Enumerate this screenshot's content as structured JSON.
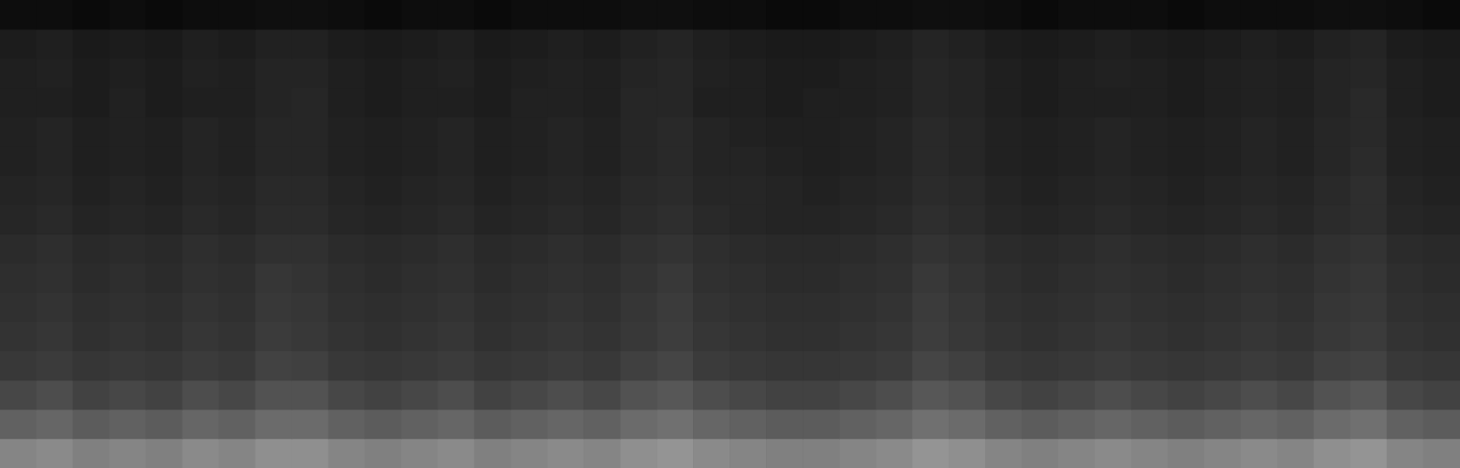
{
  "chart_data": {
    "type": "heatmap",
    "tick_labels": false,
    "grid": false,
    "zlim": [
      0,
      100
    ],
    "cells": [
      [
        5,
        5,
        4,
        5,
        4,
        5,
        5,
        6,
        6,
        5,
        4,
        5,
        5,
        4,
        5,
        5,
        5,
        6,
        6,
        5,
        5,
        4,
        4,
        5,
        5,
        6,
        6,
        5,
        4,
        5,
        5,
        5,
        4,
        5,
        5,
        5,
        6,
        6,
        5,
        4
      ],
      [
        11,
        12,
        10,
        11,
        10,
        12,
        11,
        13,
        13,
        11,
        10,
        11,
        12,
        10,
        11,
        12,
        11,
        13,
        14,
        12,
        11,
        10,
        10,
        11,
        12,
        14,
        13,
        11,
        10,
        11,
        12,
        11,
        10,
        11,
        12,
        11,
        13,
        14,
        11,
        10
      ],
      [
        12,
        13,
        11,
        12,
        11,
        13,
        12,
        14,
        14,
        12,
        11,
        12,
        13,
        11,
        12,
        13,
        12,
        14,
        15,
        13,
        12,
        11,
        11,
        12,
        13,
        15,
        14,
        12,
        11,
        12,
        13,
        12,
        11,
        12,
        13,
        12,
        14,
        15,
        12,
        11
      ],
      [
        12,
        12,
        11,
        13,
        11,
        12,
        12,
        14,
        15,
        12,
        11,
        12,
        12,
        11,
        13,
        13,
        12,
        15,
        15,
        12,
        12,
        11,
        12,
        12,
        13,
        15,
        14,
        12,
        11,
        12,
        12,
        12,
        11,
        12,
        13,
        12,
        14,
        16,
        12,
        11
      ],
      [
        13,
        14,
        12,
        13,
        12,
        14,
        13,
        15,
        15,
        13,
        12,
        13,
        14,
        12,
        13,
        14,
        13,
        15,
        16,
        14,
        13,
        12,
        12,
        13,
        14,
        16,
        15,
        13,
        12,
        13,
        14,
        13,
        12,
        13,
        14,
        13,
        15,
        16,
        13,
        12
      ],
      [
        13,
        14,
        12,
        13,
        12,
        14,
        13,
        15,
        15,
        13,
        12,
        13,
        14,
        12,
        13,
        14,
        13,
        15,
        16,
        14,
        14,
        13,
        12,
        13,
        14,
        16,
        15,
        13,
        12,
        13,
        14,
        13,
        12,
        13,
        14,
        13,
        15,
        17,
        13,
        12
      ],
      [
        14,
        15,
        13,
        14,
        13,
        15,
        14,
        16,
        16,
        14,
        13,
        14,
        15,
        13,
        14,
        15,
        14,
        16,
        17,
        15,
        15,
        14,
        13,
        14,
        15,
        17,
        16,
        14,
        13,
        14,
        15,
        14,
        13,
        14,
        15,
        14,
        16,
        18,
        14,
        13
      ],
      [
        15,
        16,
        14,
        15,
        14,
        16,
        15,
        17,
        17,
        15,
        14,
        15,
        16,
        14,
        15,
        16,
        15,
        17,
        18,
        16,
        15,
        14,
        14,
        15,
        16,
        18,
        17,
        15,
        14,
        15,
        16,
        15,
        14,
        15,
        16,
        15,
        17,
        18,
        15,
        14
      ],
      [
        17,
        18,
        16,
        17,
        16,
        18,
        17,
        19,
        19,
        17,
        16,
        17,
        18,
        16,
        17,
        18,
        17,
        19,
        20,
        18,
        17,
        16,
        16,
        17,
        18,
        20,
        19,
        17,
        16,
        17,
        18,
        17,
        16,
        17,
        18,
        17,
        19,
        20,
        17,
        16
      ],
      [
        18,
        19,
        17,
        18,
        17,
        19,
        18,
        21,
        20,
        18,
        17,
        18,
        19,
        17,
        18,
        19,
        18,
        20,
        22,
        19,
        18,
        17,
        17,
        18,
        19,
        22,
        20,
        18,
        17,
        18,
        19,
        18,
        17,
        18,
        19,
        18,
        20,
        21,
        18,
        17
      ],
      [
        19,
        20,
        18,
        19,
        18,
        20,
        19,
        22,
        21,
        19,
        18,
        19,
        20,
        18,
        19,
        20,
        19,
        21,
        23,
        20,
        19,
        18,
        18,
        19,
        20,
        23,
        21,
        19,
        18,
        19,
        20,
        19,
        18,
        19,
        20,
        19,
        21,
        22,
        19,
        18
      ],
      [
        20,
        21,
        19,
        20,
        19,
        21,
        20,
        23,
        22,
        20,
        19,
        20,
        21,
        19,
        20,
        21,
        20,
        22,
        24,
        21,
        20,
        19,
        19,
        20,
        21,
        24,
        22,
        20,
        19,
        20,
        21,
        20,
        19,
        20,
        21,
        20,
        22,
        23,
        20,
        19
      ],
      [
        22,
        23,
        21,
        22,
        21,
        23,
        22,
        26,
        25,
        22,
        21,
        22,
        23,
        21,
        22,
        23,
        22,
        25,
        27,
        23,
        22,
        21,
        21,
        22,
        23,
        27,
        25,
        22,
        21,
        22,
        23,
        22,
        21,
        22,
        23,
        22,
        25,
        26,
        22,
        21
      ],
      [
        28,
        30,
        26,
        28,
        26,
        30,
        28,
        32,
        32,
        28,
        26,
        28,
        30,
        26,
        28,
        30,
        28,
        32,
        34,
        30,
        28,
        26,
        26,
        28,
        30,
        34,
        32,
        28,
        26,
        28,
        30,
        28,
        26,
        28,
        30,
        28,
        32,
        34,
        28,
        26
      ],
      [
        38,
        40,
        36,
        38,
        36,
        40,
        38,
        42,
        42,
        38,
        36,
        38,
        40,
        36,
        38,
        40,
        38,
        42,
        44,
        40,
        38,
        36,
        36,
        38,
        40,
        44,
        42,
        38,
        36,
        38,
        40,
        38,
        36,
        38,
        40,
        38,
        42,
        44,
        38,
        36
      ],
      [
        52,
        54,
        50,
        52,
        50,
        54,
        52,
        56,
        56,
        52,
        50,
        52,
        54,
        50,
        52,
        54,
        52,
        56,
        58,
        54,
        52,
        50,
        50,
        52,
        54,
        58,
        56,
        52,
        50,
        52,
        54,
        52,
        50,
        52,
        54,
        52,
        56,
        58,
        52,
        50
      ]
    ]
  }
}
